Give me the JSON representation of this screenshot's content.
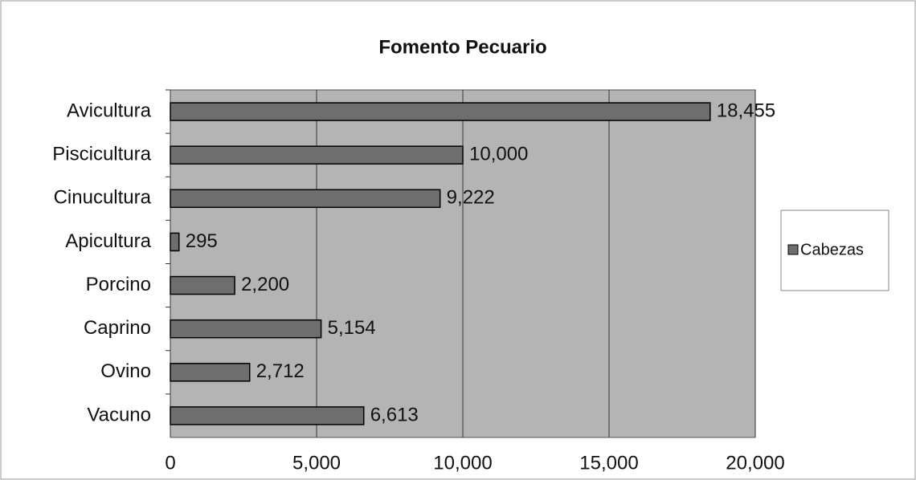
{
  "chart_data": {
    "type": "barh",
    "title": "Fomento Pecuario",
    "categories": [
      "Avicultura",
      "Piscicultura",
      "Cinucultura",
      "Apicultura",
      "Porcino",
      "Caprino",
      "Ovino",
      "Vacuno"
    ],
    "series": [
      {
        "name": "Cabezas",
        "color": "#6e6e6e",
        "values": [
          18455,
          10000,
          9222,
          295,
          2200,
          5154,
          2712,
          6613
        ],
        "value_labels": [
          "18,455",
          "10,000",
          "9,222",
          "295",
          "2,200",
          "5,154",
          "2,712",
          "6,613"
        ]
      }
    ],
    "xlim": [
      0,
      20000
    ],
    "xticks": [
      0,
      {
        "value": 5000,
        "label": "5,000"
      },
      {
        "value": 10000,
        "label": "10,000"
      },
      {
        "value": 15000,
        "label": "15,000"
      },
      {
        "value": 20000,
        "label": "20,000"
      }
    ],
    "grid": true,
    "legend": "right"
  }
}
